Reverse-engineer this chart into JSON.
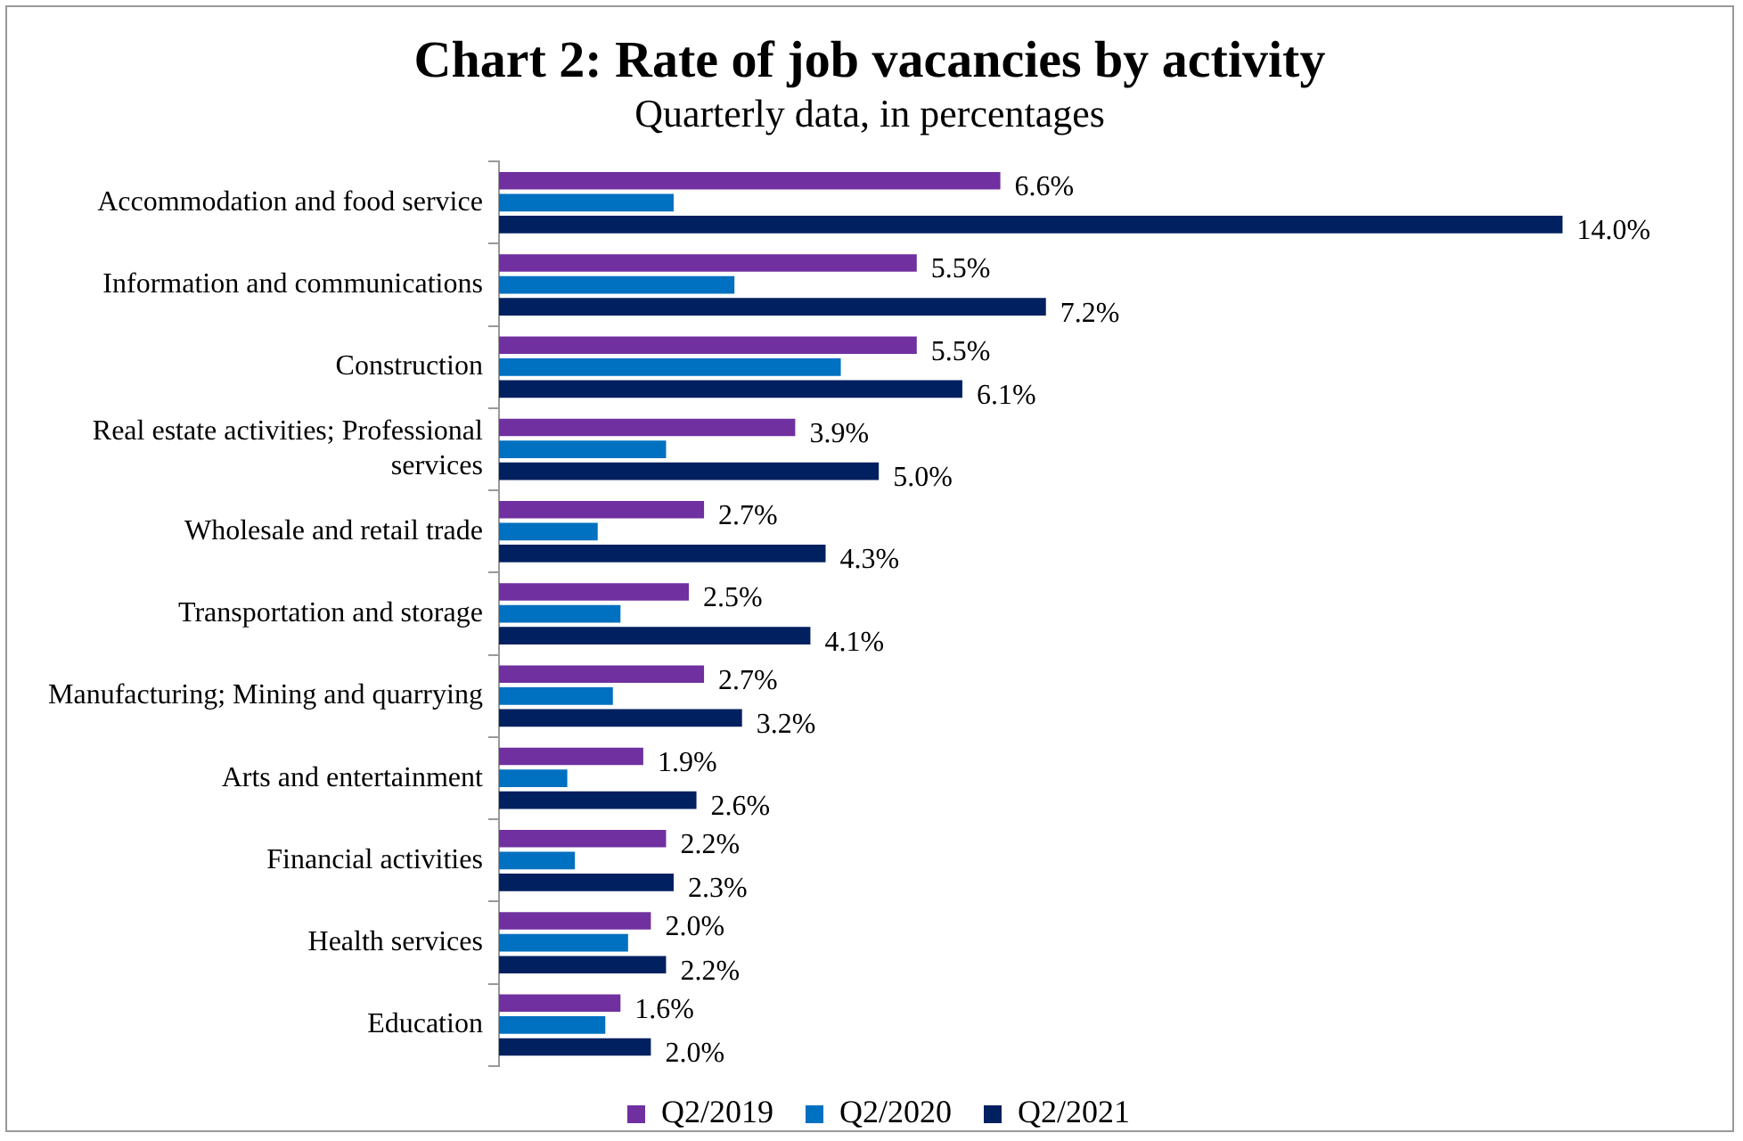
{
  "chart_data": {
    "type": "bar",
    "orientation": "horizontal",
    "title": "Chart 2: Rate of job vacancies by activity",
    "subtitle": "Quarterly data, in percentages",
    "categories": [
      "Accommodation and food service",
      "Information and communications",
      "Construction",
      "Real estate activities; Professional services",
      "Wholesale and retail trade",
      "Transportation and storage",
      "Manufacturing; Mining and quarrying",
      "Arts and entertainment",
      "Financial activities",
      "Health services",
      "Education"
    ],
    "series": [
      {
        "name": "Q2/2019",
        "color": "#7030a0",
        "values": [
          6.6,
          5.5,
          5.5,
          3.9,
          2.7,
          2.5,
          2.7,
          1.9,
          2.2,
          2.0,
          1.6
        ],
        "value_labels": [
          "6.6%",
          "5.5%",
          "5.5%",
          "3.9%",
          "2.7%",
          "2.5%",
          "2.7%",
          "1.9%",
          "2.2%",
          "2.0%",
          "1.6%"
        ]
      },
      {
        "name": "Q2/2020",
        "color": "#0070c0",
        "values": [
          2.3,
          3.1,
          4.5,
          2.2,
          1.3,
          1.6,
          1.5,
          0.9,
          1.0,
          1.7,
          1.4
        ]
      },
      {
        "name": "Q2/2021",
        "color": "#002060",
        "values": [
          14.0,
          7.2,
          6.1,
          5.0,
          4.3,
          4.1,
          3.2,
          2.6,
          2.3,
          2.2,
          2.0
        ],
        "value_labels": [
          "14.0%",
          "7.2%",
          "6.1%",
          "5.0%",
          "4.3%",
          "4.1%",
          "3.2%",
          "2.6%",
          "2.3%",
          "2.2%",
          "2.0%"
        ]
      }
    ],
    "legend": "bottom"
  }
}
